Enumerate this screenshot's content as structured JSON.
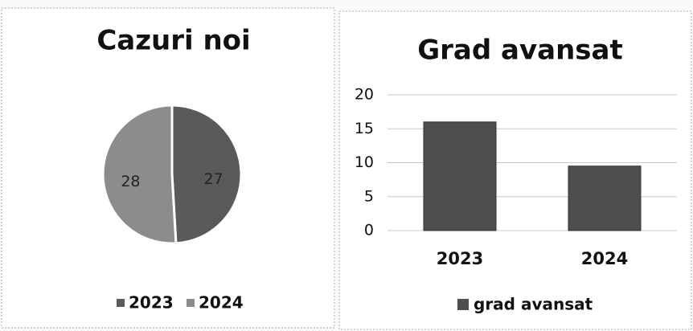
{
  "chart_data": [
    {
      "type": "pie",
      "title": "Cazuri noi",
      "categories": [
        "2023",
        "2024"
      ],
      "values": [
        27,
        28
      ],
      "colors": [
        "#5a5a5a",
        "#8c8c8c"
      ],
      "legend": "bottom"
    },
    {
      "type": "bar",
      "title": "Grad avansat",
      "categories": [
        "2023",
        "2024"
      ],
      "series": [
        {
          "name": "grad avansat",
          "color": "#4e4e4e",
          "values": [
            16,
            9.5
          ]
        }
      ],
      "ylim": [
        0,
        20
      ],
      "yticks": [
        0,
        5,
        10,
        15,
        20
      ],
      "grid": true,
      "legend": "bottom"
    }
  ]
}
